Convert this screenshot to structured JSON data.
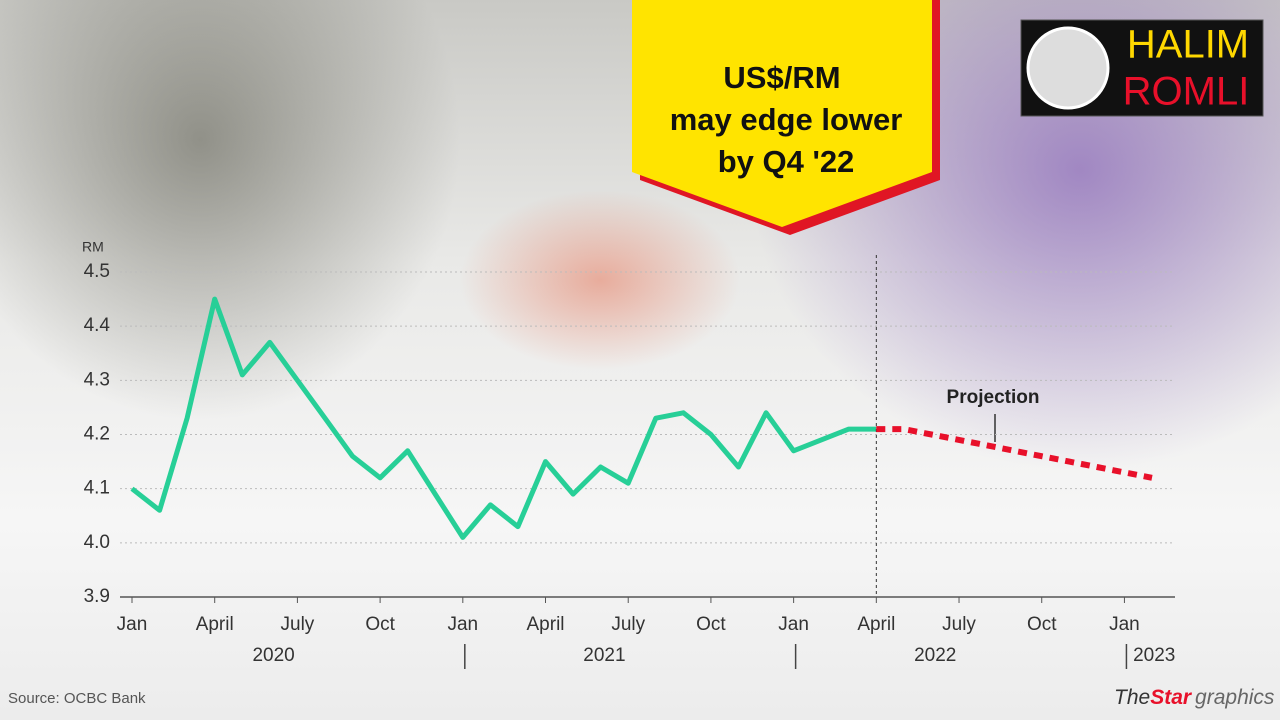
{
  "chart_data": {
    "type": "line",
    "title": [
      "US$/RM",
      "may edge lower",
      "by Q4 '22"
    ],
    "y_label": "RM",
    "annotation": "Projection",
    "source": "Source: OCBC Bank",
    "credit": [
      "The",
      "Star",
      "graphics"
    ],
    "logo": [
      "HALIM",
      "ROMLI"
    ],
    "xlim": [
      "2020-01",
      "2023-02"
    ],
    "xticks": [
      {
        "value": "2020-01",
        "label": "Jan"
      },
      {
        "value": "2020-04",
        "label": "April"
      },
      {
        "value": "2020-07",
        "label": "July"
      },
      {
        "value": "2020-10",
        "label": "Oct"
      },
      {
        "value": "2021-01",
        "label": "Jan"
      },
      {
        "value": "2021-04",
        "label": "April"
      },
      {
        "value": "2021-07",
        "label": "July"
      },
      {
        "value": "2021-10",
        "label": "Oct"
      },
      {
        "value": "2022-01",
        "label": "Jan"
      },
      {
        "value": "2022-04",
        "label": "April"
      },
      {
        "value": "2022-07",
        "label": "July"
      },
      {
        "value": "2022-10",
        "label": "Oct"
      },
      {
        "value": "2023-01",
        "label": "Jan"
      }
    ],
    "years": [
      "2020",
      "2021",
      "2022",
      "2023"
    ],
    "ylim": [
      3.9,
      4.5
    ],
    "yticks": [
      3.9,
      {
        "value": 4,
        "label": "4.0"
      },
      4.1,
      4.2,
      4.3,
      4.4,
      4.5
    ],
    "grid": true,
    "series": [
      {
        "color": "#27cf97",
        "style": "solid",
        "x": [
          "2020-01",
          "2020-02",
          "2020-03",
          "2020-04",
          "2020-05",
          "2020-06",
          "2020-07",
          "2020-08",
          "2020-09",
          "2020-10",
          "2020-11",
          "2020-12",
          "2021-01",
          "2021-02",
          "2021-03",
          "2021-04",
          "2021-05",
          "2021-06",
          "2021-07",
          "2021-08",
          "2021-09",
          "2021-10",
          "2021-11",
          "2021-12",
          "2022-01",
          "2022-02",
          "2022-03",
          "2022-04"
        ],
        "values": [
          4.1,
          4.06,
          4.23,
          4.45,
          4.31,
          4.37,
          4.3,
          4.23,
          4.16,
          4.12,
          4.17,
          4.09,
          4.01,
          4.07,
          4.03,
          4.15,
          4.09,
          4.14,
          4.11,
          4.23,
          4.24,
          4.2,
          4.14,
          4.24,
          4.17,
          4.19,
          4.21,
          4.21
        ]
      },
      {
        "color": "#e8102a",
        "style": "dotted",
        "x": [
          "2022-04",
          "2022-05",
          "2022-06",
          "2022-07",
          "2022-08",
          "2022-09",
          "2022-10",
          "2022-11",
          "2022-12",
          "2023-01",
          "2023-02"
        ],
        "values": [
          4.21,
          4.21,
          4.2,
          4.19,
          4.18,
          4.17,
          4.16,
          4.15,
          4.14,
          4.13,
          4.12
        ]
      }
    ]
  }
}
